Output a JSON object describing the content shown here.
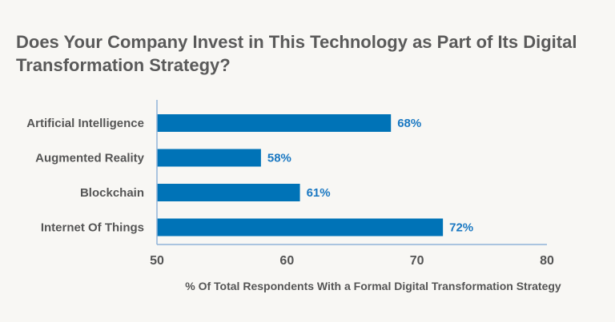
{
  "chart_data": {
    "type": "bar",
    "orientation": "horizontal",
    "title": "Does Your Company Invest in This Technology as Part of Its Digital Transformation Strategy?",
    "categories": [
      "Artificial Intelligence",
      "Augmented Reality",
      "Blockchain",
      "Internet Of Things"
    ],
    "values": [
      68,
      58,
      61,
      72
    ],
    "value_labels": [
      "68%",
      "58%",
      "61%",
      "72%"
    ],
    "xlabel": "% Of Total Respondents With a Formal Digital Transformation Strategy",
    "ylabel": "",
    "xlim": [
      50,
      80
    ],
    "xticks": [
      50,
      60,
      70,
      80
    ],
    "grid": false,
    "colors": {
      "bar": "#0073b7",
      "axis": "#8fb4d8",
      "label": "#1a78c2"
    }
  }
}
